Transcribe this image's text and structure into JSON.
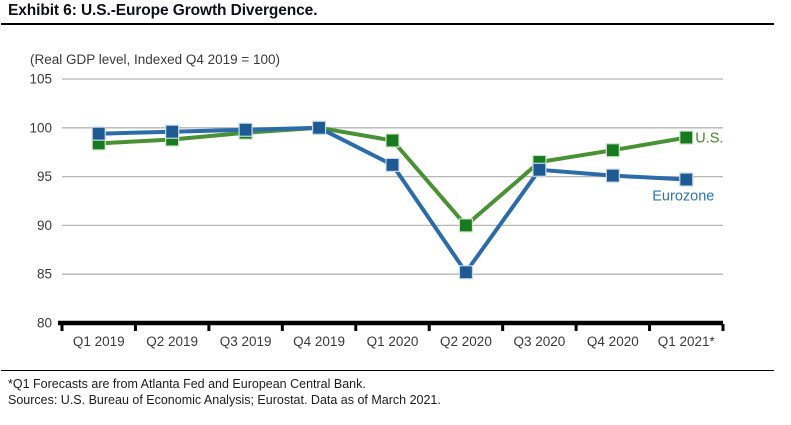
{
  "header": {
    "title": "Exhibit 6: U.S.-Europe Growth Divergence."
  },
  "chart_data": {
    "type": "line",
    "title": "Exhibit 6: U.S.-Europe Growth Divergence.",
    "subtitle": "(Real GDP level, Indexed Q4 2019 = 100)",
    "categories": [
      "Q1 2019",
      "Q2 2019",
      "Q3 2019",
      "Q4 2019",
      "Q1 2020",
      "Q2 2020",
      "Q3 2020",
      "Q4 2020",
      "Q1 2021*"
    ],
    "series": [
      {
        "name": "U.S.",
        "values": [
          98.4,
          98.8,
          99.5,
          100.0,
          98.7,
          90.0,
          96.5,
          97.7,
          99.0
        ],
        "line_color": "#4a9135",
        "marker_color": "#177a1e",
        "marker_edge": "#cfe3c8",
        "label_color": "#3f8c28"
      },
      {
        "name": "Eurozone",
        "values": [
          99.4,
          99.6,
          99.8,
          100.0,
          96.2,
          85.2,
          95.7,
          95.1,
          94.7
        ],
        "line_color": "#2b6ba8",
        "marker_color": "#1d5a91",
        "marker_edge": "#c6d9ea",
        "label_color": "#2f74b0"
      }
    ],
    "ylim": [
      80,
      105
    ],
    "yticks": [
      80,
      85,
      90,
      95,
      100,
      105
    ],
    "grid": true,
    "grid_color": "#b5b5b5",
    "axis_color": "#000000",
    "tick_label_color": "#3a3a3a",
    "legend_position": "line-end-labels",
    "marker_shape": "square"
  },
  "footnotes": {
    "line1": "*Q1 Forecasts are from Atlanta Fed and European Central Bank.",
    "line2": "Sources: U.S. Bureau of Economic Analysis; Eurostat. Data as of March 2021."
  }
}
